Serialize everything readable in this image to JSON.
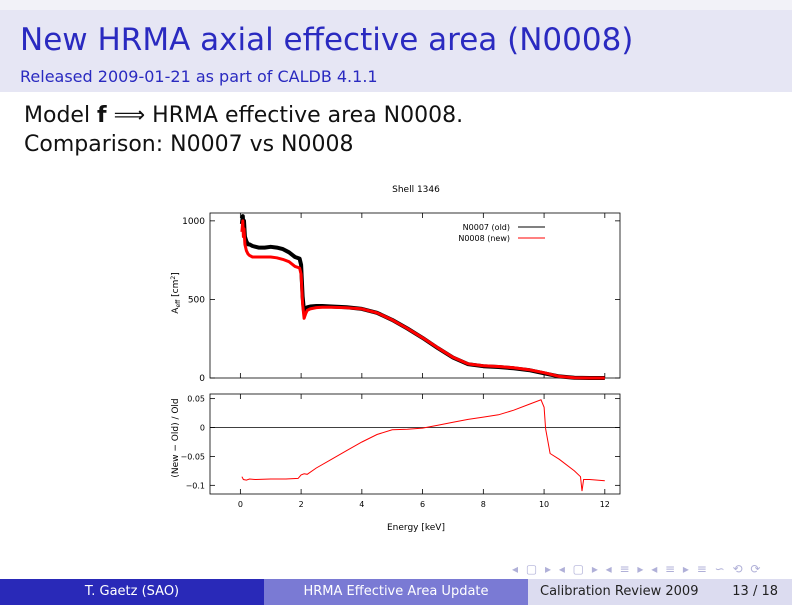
{
  "slide": {
    "title": "New HRMA axial effective area (N0008)",
    "subtitle": "Released 2009-01-21 as part of CALDB 4.1.1",
    "line1_pre": "Model ",
    "line1_bold": "f",
    "line1_arrow": "⟹",
    "line1_post": " HRMA effective area N0008.",
    "line2": "Comparison: N0007 vs N0008"
  },
  "footer": {
    "author": "T. Gaetz  (SAO)",
    "talk": "HRMA Effective Area Update",
    "conference": "Calibration Review 2009",
    "page": "13 / 18",
    "nav_symbols": "◂ ▢ ▸ ◂ ▢ ▸ ◂ ≡ ▸ ◂ ≡ ▸ ≡ ∽ ⟲ ⟳"
  },
  "colors": {
    "title": "#2a2ac0",
    "old_series": "#000000",
    "new_series": "#ff0000"
  },
  "chart_data": [
    {
      "type": "line",
      "title": "Shell 1346",
      "ylabel_main": "A",
      "ylabel_sub": "eff",
      "ylabel_unit": "[cm",
      "ylabel_sup": "2",
      "ylabel_close": "]",
      "xlim": [
        -1,
        12.5
      ],
      "ylim": [
        0,
        1050
      ],
      "yticks": [
        0,
        500,
        1000
      ],
      "grid": false,
      "legend_position": "top-right",
      "series": [
        {
          "name": "N0007 (old)",
          "x": [
            0.05,
            0.08,
            0.1,
            0.12,
            0.15,
            0.2,
            0.25,
            0.3,
            0.4,
            0.5,
            0.6,
            0.8,
            1.0,
            1.2,
            1.4,
            1.6,
            1.8,
            1.95,
            2.0,
            2.05,
            2.1,
            2.15,
            2.2,
            2.3,
            2.5,
            2.7,
            3.0,
            3.5,
            4.0,
            4.5,
            5.0,
            5.5,
            6.0,
            6.5,
            7.0,
            7.5,
            8.0,
            8.5,
            9.0,
            9.5,
            10.0,
            10.5,
            11.0,
            11.5,
            12.0
          ],
          "y": [
            980,
            1030,
            950,
            1000,
            900,
            870,
            850,
            850,
            840,
            835,
            830,
            830,
            835,
            830,
            820,
            800,
            770,
            760,
            720,
            520,
            420,
            440,
            450,
            455,
            458,
            458,
            455,
            450,
            440,
            415,
            370,
            315,
            255,
            190,
            130,
            88,
            75,
            70,
            62,
            50,
            30,
            10,
            2,
            0,
            0
          ]
        },
        {
          "name": "N0008 (new)",
          "x": [
            0.05,
            0.08,
            0.1,
            0.12,
            0.15,
            0.2,
            0.25,
            0.3,
            0.4,
            0.5,
            0.6,
            0.8,
            1.0,
            1.2,
            1.4,
            1.6,
            1.8,
            1.95,
            2.0,
            2.05,
            2.1,
            2.15,
            2.2,
            2.3,
            2.5,
            2.7,
            3.0,
            3.5,
            4.0,
            4.5,
            5.0,
            5.5,
            6.0,
            6.5,
            7.0,
            7.5,
            8.0,
            8.5,
            9.0,
            9.5,
            10.0,
            10.5,
            11.0,
            11.5,
            12.0
          ],
          "y": [
            930,
            1000,
            900,
            950,
            850,
            810,
            790,
            780,
            770,
            770,
            770,
            770,
            770,
            765,
            755,
            740,
            710,
            700,
            660,
            470,
            380,
            410,
            430,
            440,
            448,
            450,
            450,
            447,
            440,
            415,
            370,
            315,
            256,
            192,
            132,
            90,
            78,
            73,
            65,
            53,
            34,
            10,
            2,
            0,
            0
          ]
        }
      ],
      "legend": [
        {
          "label": "N0007 (old)",
          "color": "#000000"
        },
        {
          "label": "N0008 (new)",
          "color": "#ff0000"
        }
      ]
    },
    {
      "type": "line",
      "xlabel": "Energy [keV]",
      "ylabel": "(New − Old) / Old",
      "xlim": [
        -1,
        12.5
      ],
      "ylim": [
        -0.115,
        0.058
      ],
      "yticks": [
        -0.1,
        -0.05,
        0,
        0.05
      ],
      "yticklabels": [
        "−0.1",
        "−0.05",
        "0",
        "0.05"
      ],
      "xticks": [
        0,
        2,
        4,
        6,
        8,
        10,
        12
      ],
      "grid": false,
      "series": [
        {
          "x": [
            0.05,
            0.1,
            0.2,
            0.3,
            0.5,
            1.0,
            1.5,
            1.9,
            2.0,
            2.1,
            2.2,
            2.5,
            3.0,
            3.5,
            4.0,
            4.5,
            5.0,
            5.5,
            6.0,
            6.5,
            7.0,
            7.5,
            8.0,
            8.5,
            9.0,
            9.5,
            9.9,
            10.0,
            10.05,
            10.2,
            10.5,
            11.0,
            11.2,
            11.25,
            11.3,
            11.5,
            12.0
          ],
          "y": [
            -0.085,
            -0.09,
            -0.091,
            -0.089,
            -0.09,
            -0.089,
            -0.089,
            -0.088,
            -0.082,
            -0.08,
            -0.081,
            -0.07,
            -0.055,
            -0.04,
            -0.025,
            -0.012,
            -0.004,
            -0.003,
            -0.001,
            0.004,
            0.009,
            0.014,
            0.018,
            0.022,
            0.03,
            0.04,
            0.048,
            0.035,
            -0.002,
            -0.045,
            -0.055,
            -0.075,
            -0.085,
            -0.11,
            -0.09,
            -0.09,
            -0.092
          ]
        }
      ]
    }
  ]
}
